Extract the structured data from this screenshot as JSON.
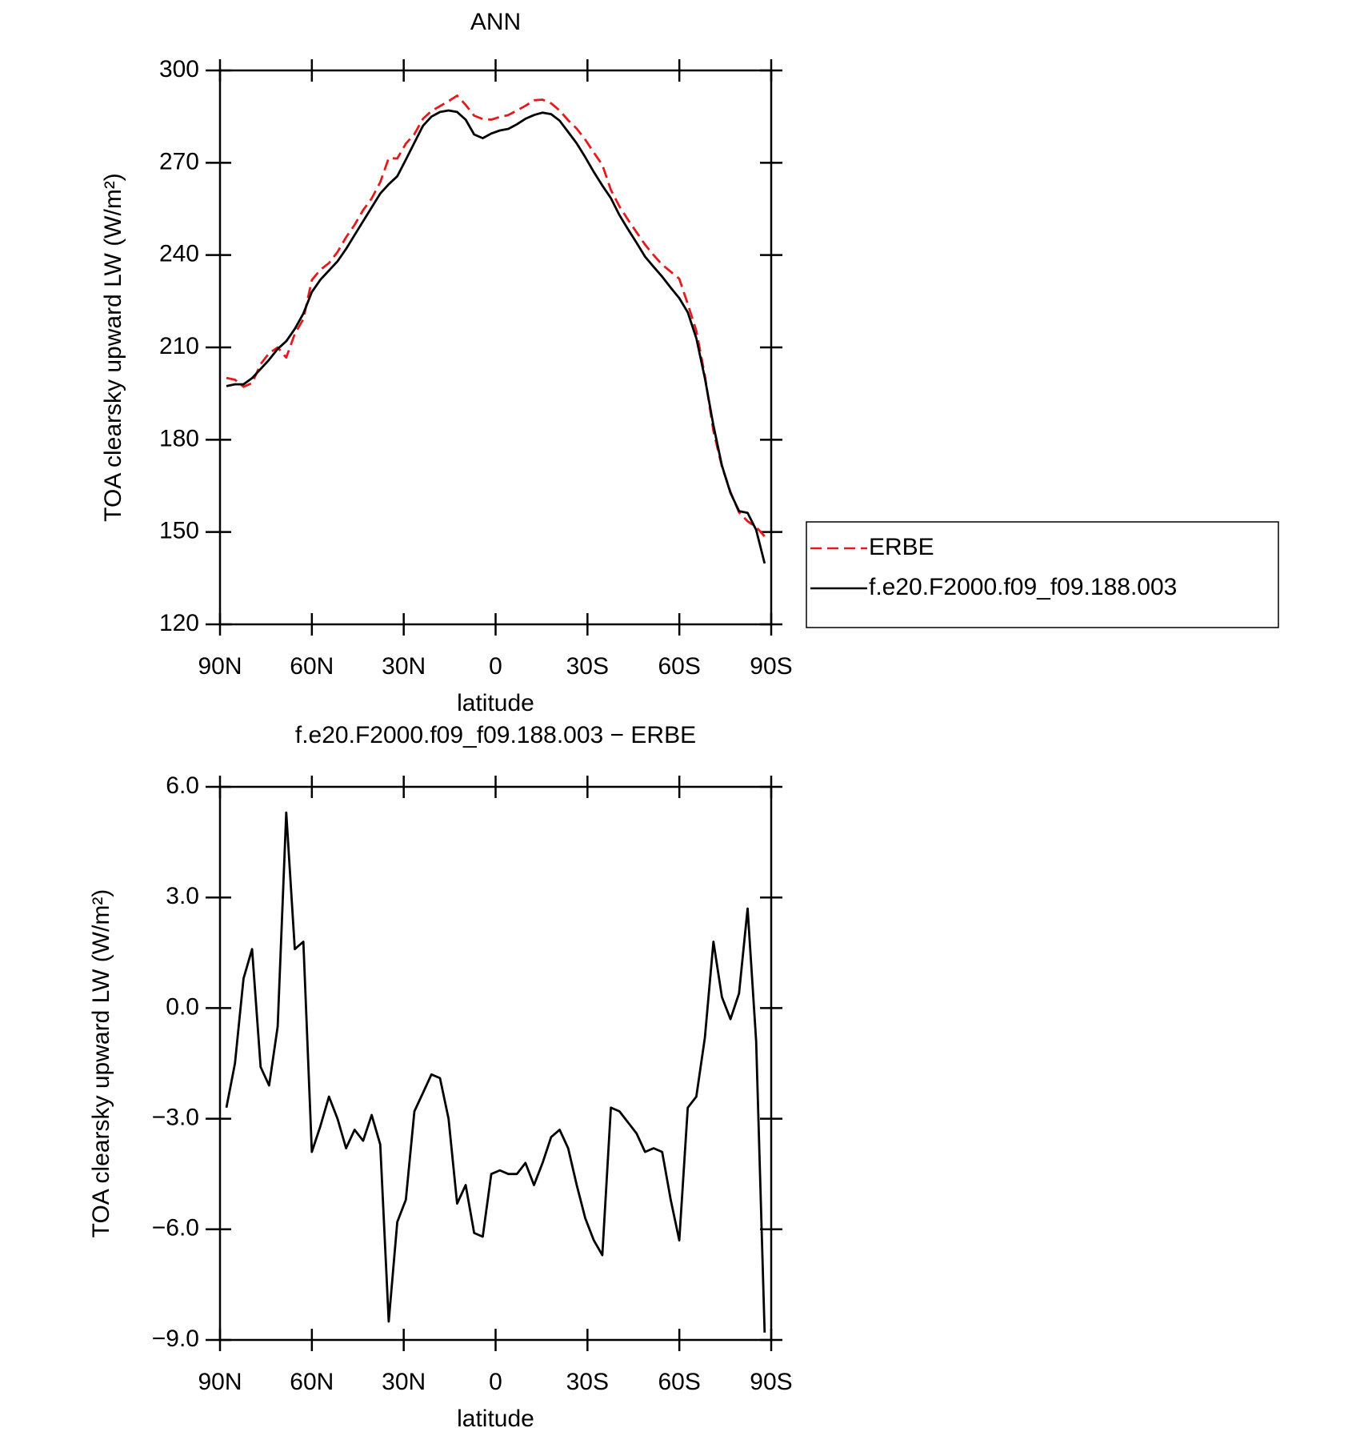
{
  "chart_data": [
    {
      "type": "line",
      "title": "ANN",
      "xlabel": "latitude",
      "ylabel": "TOA clearsky upward LW (W/m²)",
      "x": [
        87.9,
        85.11,
        82.32,
        79.53,
        76.74,
        73.95,
        71.16,
        68.37,
        65.58,
        62.79,
        60.0,
        57.21,
        54.42,
        51.63,
        48.84,
        46.05,
        43.26,
        40.47,
        37.68,
        34.89,
        32.1,
        29.31,
        26.52,
        23.73,
        20.94,
        18.15,
        15.36,
        12.57,
        9.78,
        6.99,
        4.2,
        1.41,
        -1.38,
        -4.17,
        -6.96,
        -9.75,
        -12.54,
        -15.33,
        -18.12,
        -20.91,
        -23.7,
        -26.49,
        -29.28,
        -32.07,
        -34.86,
        -37.65,
        -40.44,
        -43.23,
        -46.02,
        -48.81,
        -51.6,
        -54.39,
        -57.18,
        -59.97,
        -62.76,
        -65.55,
        -68.34,
        -71.13,
        -73.92,
        -76.71,
        -79.5,
        -82.29,
        -85.08,
        -87.87
      ],
      "series": [
        {
          "name": "ERBE",
          "color": "#e41a1c",
          "dash": true,
          "values": [
            200.1,
            199.5,
            197.2,
            198.4,
            204.6,
            208.1,
            210,
            206.7,
            214.4,
            219.2,
            231.9,
            235.2,
            237.4,
            241,
            245.8,
            249.8,
            254.6,
            258.4,
            263.7,
            271.5,
            271.4,
            276.2,
            279.3,
            284.3,
            286.8,
            288.4,
            290,
            291.8,
            288.8,
            285.3,
            284.2,
            284,
            284.9,
            285.5,
            287,
            288.5,
            290.3,
            290.5,
            289.3,
            287,
            283.8,
            281.1,
            277.5,
            273.3,
            269.3,
            261.2,
            255.8,
            251.5,
            247.4,
            243.4,
            240,
            236.9,
            234.6,
            232.3,
            224.1,
            215.4,
            200.8,
            182.8,
            171.3,
            163,
            156.4,
            153.5,
            151.6,
            148.6
          ]
        },
        {
          "name": "f.e20.F2000.f09_f09.188.003",
          "color": "#000000",
          "dash": false,
          "values": [
            197.4,
            198,
            198,
            200,
            203,
            206,
            209.5,
            212,
            216,
            221,
            228,
            232,
            235,
            238,
            242,
            246.5,
            251,
            255.5,
            260,
            263,
            265.6,
            271,
            276.5,
            282,
            285,
            286.5,
            287,
            286.5,
            284,
            279.2,
            278,
            279.5,
            280.5,
            281,
            282.5,
            284.3,
            285.5,
            286.3,
            285.8,
            283.7,
            280,
            276.3,
            271.8,
            267,
            262.6,
            258.5,
            253,
            248.4,
            244,
            239.5,
            236.2,
            233,
            229.4,
            226,
            221.4,
            213,
            200,
            184.6,
            171.6,
            162.7,
            156.8,
            156.2,
            150.7,
            139.8
          ]
        }
      ],
      "xlim": [
        90,
        -90
      ],
      "xticks": [
        {
          "value": 90,
          "label": "90N"
        },
        {
          "value": 60,
          "label": "60N"
        },
        {
          "value": 30,
          "label": "30N"
        },
        0,
        {
          "value": -30,
          "label": "30S"
        },
        {
          "value": -60,
          "label": "60S"
        },
        {
          "value": -90,
          "label": "90S"
        }
      ],
      "ylim": [
        120,
        300
      ],
      "yticks": [
        120,
        150,
        180,
        210,
        240,
        270,
        300
      ],
      "legend": "right"
    },
    {
      "type": "line",
      "title": "f.e20.F2000.f09_f09.188.003 − ERBE",
      "xlabel": "latitude",
      "ylabel": "TOA clearsky upward LW (W/m²)",
      "x": [
        87.9,
        85.11,
        82.32,
        79.53,
        76.74,
        73.95,
        71.16,
        68.37,
        65.58,
        62.79,
        60.0,
        57.21,
        54.42,
        51.63,
        48.84,
        46.05,
        43.26,
        40.47,
        37.68,
        34.89,
        32.1,
        29.31,
        26.52,
        23.73,
        20.94,
        18.15,
        15.36,
        12.57,
        9.78,
        6.99,
        4.2,
        1.41,
        -1.38,
        -4.17,
        -6.96,
        -9.75,
        -12.54,
        -15.33,
        -18.12,
        -20.91,
        -23.7,
        -26.49,
        -29.28,
        -32.07,
        -34.86,
        -37.65,
        -40.44,
        -43.23,
        -46.02,
        -48.81,
        -51.6,
        -54.39,
        -57.18,
        -59.97,
        -62.76,
        -65.55,
        -68.34,
        -71.13,
        -73.92,
        -76.71,
        -79.5,
        -82.29,
        -85.08,
        -87.87
      ],
      "series": [
        {
          "color": "#000000",
          "dash": false,
          "values": [
            -2.7,
            -1.5,
            0.8,
            1.6,
            -1.6,
            -2.1,
            -0.5,
            5.3,
            1.6,
            1.8,
            -3.9,
            -3.2,
            -2.4,
            -3.0,
            -3.8,
            -3.3,
            -3.6,
            -2.9,
            -3.7,
            -8.5,
            -5.8,
            -5.2,
            -2.8,
            -2.3,
            -1.8,
            -1.9,
            -3.0,
            -5.3,
            -4.8,
            -6.1,
            -6.2,
            -4.5,
            -4.4,
            -4.5,
            -4.5,
            -4.2,
            -4.8,
            -4.2,
            -3.5,
            -3.3,
            -3.8,
            -4.8,
            -5.7,
            -6.3,
            -6.7,
            -2.7,
            -2.8,
            -3.1,
            -3.4,
            -3.9,
            -3.8,
            -3.9,
            -5.2,
            -6.3,
            -2.7,
            -2.4,
            -0.8,
            1.8,
            0.3,
            -0.3,
            0.4,
            2.7,
            -0.9,
            -8.8
          ]
        }
      ],
      "xlim": [
        90,
        -90
      ],
      "xticks": [
        {
          "value": 90,
          "label": "90N"
        },
        {
          "value": 60,
          "label": "60N"
        },
        {
          "value": 30,
          "label": "30N"
        },
        0,
        {
          "value": -30,
          "label": "30S"
        },
        {
          "value": -60,
          "label": "60S"
        },
        {
          "value": -90,
          "label": "90S"
        }
      ],
      "ylim": [
        -9,
        6
      ],
      "yticks": [
        {
          "value": -9,
          "label": "−9.0"
        },
        {
          "value": -6,
          "label": "−6.0"
        },
        {
          "value": -3,
          "label": "−3.0"
        },
        {
          "value": 0,
          "label": "0.0"
        },
        {
          "value": 3,
          "label": "3.0"
        },
        {
          "value": 6,
          "label": "6.0"
        }
      ]
    }
  ]
}
